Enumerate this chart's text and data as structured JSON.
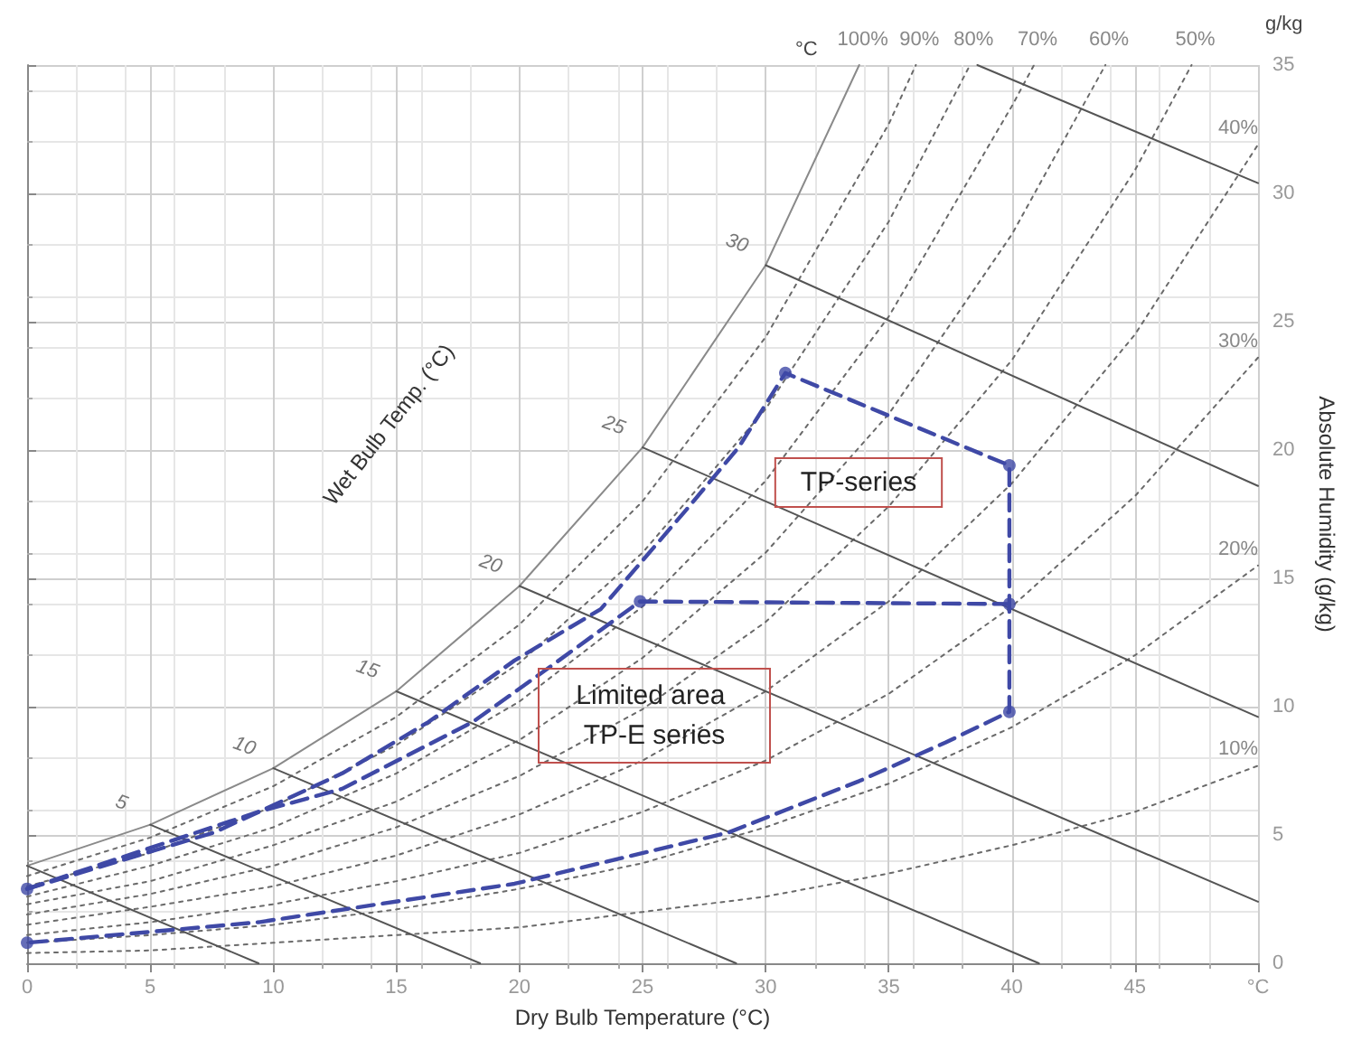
{
  "chart_data": {
    "type": "line",
    "xlabel": "Dry Bulb Temperature (°C)",
    "ylabel": "Absolute Humidity (g/kg)",
    "xlim": [
      0,
      50
    ],
    "xticks": [
      0,
      5,
      10,
      15,
      20,
      25,
      30,
      35,
      40,
      45,
      {
        "value": 50,
        "label": "°C"
      }
    ],
    "ylim": [
      0,
      35
    ],
    "yticks": [
      0,
      5,
      10,
      15,
      20,
      25,
      30,
      35
    ],
    "grid": true,
    "annotations": [
      "°C",
      "g/kg",
      "Wet Bulb Temp. (°C)",
      "TP-series",
      "Limited area TP-E series",
      {
        "text": "5",
        "x": 5,
        "y": 5.4
      },
      {
        "text": "10",
        "x": 10,
        "y": 7.6
      },
      {
        "text": "15",
        "x": 15,
        "y": 10.6
      },
      {
        "text": "20",
        "x": 20,
        "y": 14.7
      },
      {
        "text": "25",
        "x": 25,
        "y": 20.1
      },
      {
        "text": "30",
        "x": 30,
        "y": 27.2
      }
    ],
    "series": [
      {
        "name": "100%",
        "color": "#8a8a8a",
        "line_style": "solid",
        "marker": "none",
        "x": [
          0,
          5,
          10,
          15,
          20,
          25,
          30,
          33.8
        ],
        "values": [
          3.8,
          5.4,
          7.6,
          10.6,
          14.7,
          20.1,
          27.2,
          35
        ]
      },
      {
        "name": "90%",
        "color": "#6a6a6a",
        "line_style": "dotted",
        "marker": "none",
        "x": [
          0,
          5,
          10,
          15,
          20,
          25,
          30,
          35,
          36.1
        ],
        "values": [
          3.4,
          4.9,
          6.9,
          9.6,
          13.2,
          18,
          24.4,
          32.7,
          35
        ]
      },
      {
        "name": "80%",
        "color": "#6a6a6a",
        "line_style": "dotted",
        "marker": "none",
        "x": [
          0,
          5,
          10,
          15,
          20,
          25,
          30,
          35,
          38.3
        ],
        "values": [
          3,
          4.3,
          6.1,
          8.5,
          11.7,
          16,
          21.6,
          28.9,
          35
        ]
      },
      {
        "name": "70%",
        "color": "#6a6a6a",
        "line_style": "dotted",
        "marker": "none",
        "x": [
          0,
          5,
          10,
          15,
          20,
          25,
          30,
          35,
          40,
          40.9
        ],
        "values": [
          2.6,
          3.8,
          5.3,
          7.4,
          10.2,
          13.9,
          18.8,
          25.2,
          33.4,
          35
        ]
      },
      {
        "name": "60%",
        "color": "#6a6a6a",
        "line_style": "dotted",
        "marker": "none",
        "x": [
          0,
          5,
          10,
          15,
          20,
          25,
          30,
          35,
          40,
          43.8
        ],
        "values": [
          2.3,
          3.2,
          4.6,
          6.3,
          8.7,
          11.9,
          16,
          21.4,
          28.4,
          35
        ]
      },
      {
        "name": "50%",
        "color": "#6a6a6a",
        "line_style": "dotted",
        "marker": "none",
        "x": [
          0,
          5,
          10,
          15,
          20,
          25,
          30,
          35,
          40,
          45,
          47.3
        ],
        "values": [
          1.9,
          2.7,
          3.8,
          5.3,
          7.3,
          9.9,
          13.3,
          17.8,
          23.5,
          30.9,
          35
        ]
      },
      {
        "name": "40%",
        "color": "#6a6a6a",
        "line_style": "dotted",
        "marker": "none",
        "x": [
          0,
          5,
          10,
          15,
          20,
          25,
          30,
          35,
          40,
          45,
          50
        ],
        "values": [
          1.5,
          2.2,
          3,
          4.2,
          5.8,
          7.9,
          10.6,
          14.1,
          18.7,
          24.5,
          31.9
        ]
      },
      {
        "name": "30%",
        "color": "#6a6a6a",
        "line_style": "dotted",
        "marker": "none",
        "x": [
          0,
          5,
          10,
          15,
          20,
          25,
          30,
          35,
          40,
          45,
          50
        ],
        "values": [
          1.1,
          1.6,
          2.3,
          3.2,
          4.3,
          5.9,
          7.9,
          10.5,
          13.9,
          18.2,
          23.6
        ]
      },
      {
        "name": "20%",
        "color": "#6a6a6a",
        "line_style": "dotted",
        "marker": "none",
        "x": [
          0,
          5,
          10,
          15,
          20,
          25,
          30,
          35,
          40,
          45,
          50
        ],
        "values": [
          0.8,
          1.1,
          1.5,
          2.1,
          2.9,
          3.9,
          5.3,
          7,
          9.2,
          12,
          15.5
        ]
      },
      {
        "name": "10%",
        "color": "#6a6a6a",
        "line_style": "dotted",
        "marker": "none",
        "x": [
          0,
          5,
          10,
          15,
          20,
          25,
          30,
          35,
          40,
          45,
          50
        ],
        "values": [
          0.4,
          0.5,
          0.8,
          1.1,
          1.4,
          2,
          2.6,
          3.5,
          4.6,
          5.9,
          7.7
        ]
      },
      {
        "color": "#555555",
        "line_style": "solid",
        "marker": "none",
        "x": [
          0,
          9.4
        ],
        "values": [
          3.8,
          0
        ]
      },
      {
        "color": "#555555",
        "line_style": "solid",
        "marker": "none",
        "x": [
          5,
          18.4
        ],
        "values": [
          5.4,
          0
        ]
      },
      {
        "color": "#555555",
        "line_style": "solid",
        "marker": "none",
        "x": [
          10,
          28.8
        ],
        "values": [
          7.6,
          0
        ]
      },
      {
        "color": "#555555",
        "line_style": "solid",
        "marker": "none",
        "x": [
          15,
          41.1
        ],
        "values": [
          10.6,
          0
        ]
      },
      {
        "color": "#555555",
        "line_style": "solid",
        "marker": "none",
        "x": [
          20,
          50
        ],
        "values": [
          14.7,
          2.4
        ]
      },
      {
        "color": "#555555",
        "line_style": "solid",
        "marker": "none",
        "x": [
          25,
          50
        ],
        "values": [
          20.1,
          9.6
        ]
      },
      {
        "color": "#555555",
        "line_style": "solid",
        "marker": "none",
        "x": [
          30,
          50
        ],
        "values": [
          27.2,
          18.6
        ]
      },
      {
        "color": "#555555",
        "line_style": "solid",
        "marker": "none",
        "x": [
          38.6,
          50
        ],
        "values": [
          35,
          30.4
        ]
      },
      {
        "color": "#3f49a6",
        "line_style": "dashed",
        "marker": "none",
        "x": [
          0,
          7.6,
          12.8,
          16.3,
          19.8,
          23.3,
          26.8,
          28.9,
          30.8,
          39.9,
          39.9,
          39.9,
          37.3,
          33.8,
          28.5,
          19.8,
          9.4,
          0
        ],
        "values": [
          2.9,
          5.1,
          7.4,
          9.4,
          11.8,
          13.8,
          17.7,
          20.1,
          23,
          19.4,
          14,
          9.8,
          8.6,
          7.1,
          5.1,
          3.1,
          1.6,
          0.8
        ]
      },
      {
        "color": "#3f49a6",
        "line_style": "dashed",
        "marker": "none",
        "x": [
          0,
          9.4,
          12.8,
          18.1,
          21.6,
          24.9,
          39.9
        ],
        "values": [
          2.9,
          5.9,
          6.8,
          9.4,
          11.8,
          14.1,
          14
        ]
      },
      {
        "type": "scatter",
        "color": "#3f49a6",
        "marker": "circle",
        "x": [
          0,
          0,
          30.8,
          39.9,
          39.9,
          39.9,
          24.9
        ],
        "values": [
          2.9,
          0.8,
          23,
          19.4,
          14,
          9.8,
          14.1
        ]
      }
    ]
  }
}
